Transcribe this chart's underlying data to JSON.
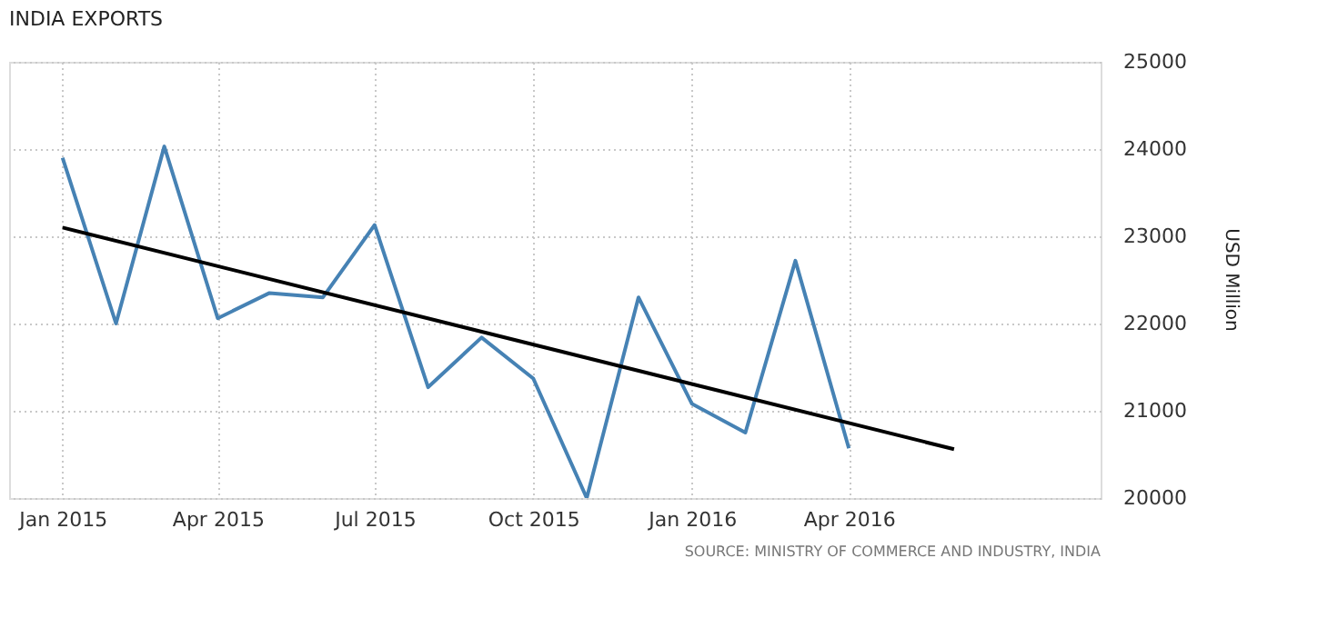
{
  "chart_data": {
    "type": "line",
    "title": "INDIA EXPORTS",
    "ylabel": "USD Million",
    "x": [
      "2015-01",
      "2015-02",
      "2015-03",
      "2015-04",
      "2015-05",
      "2015-06",
      "2015-07",
      "2015-08",
      "2015-09",
      "2015-10",
      "2015-11",
      "2015-12",
      "2016-01",
      "2016-02",
      "2016-03",
      "2016-04"
    ],
    "series": [
      {
        "color": "#4682b4",
        "values": [
          23900,
          22000,
          24030,
          22060,
          22350,
          22300,
          23130,
          21270,
          21840,
          21370,
          20000,
          22300,
          21080,
          20750,
          22720,
          20570
        ]
      },
      {
        "type": "line",
        "color": "#000000",
        "x": [
          "2015-01",
          "2016-06"
        ],
        "values": [
          23100,
          20560
        ]
      }
    ],
    "xlim": [
      "2014-12-01",
      "2016-08-25"
    ],
    "xticks": [
      {
        "value": "2015-01",
        "label": "Jan 2015"
      },
      {
        "value": "2015-04",
        "label": "Apr 2015"
      },
      {
        "value": "2015-07",
        "label": "Jul 2015"
      },
      {
        "value": "2015-10",
        "label": "Oct 2015"
      },
      {
        "value": "2016-01",
        "label": "Jan 2016"
      },
      {
        "value": "2016-04",
        "label": "Apr 2016"
      }
    ],
    "ylim": [
      20000,
      25000
    ],
    "yticks": [
      20000,
      21000,
      22000,
      23000,
      24000,
      25000
    ],
    "grid": true,
    "marker": "none",
    "line_style": "solid",
    "annotations": [
      "SOURCE: MINISTRY OF COMMERCE AND INDUSTRY, INDIA"
    ]
  }
}
